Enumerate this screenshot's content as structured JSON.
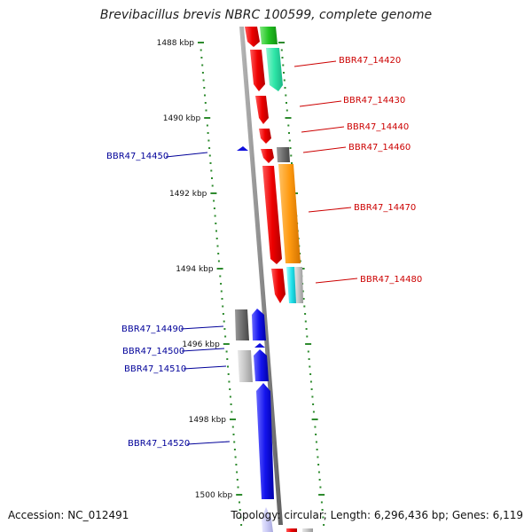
{
  "title": "Brevibacillus brevis NBRC 100599, complete genome",
  "footer": {
    "accession": "Accession: NC_012491",
    "topology": "Topology: circular; Length: 6,296,436 bp; Genes: 6,119"
  },
  "colors": {
    "backbone": "#8c8c8c",
    "tick": "#2e8b2e",
    "label_forward": "#cc0000",
    "label_reverse": "#000099"
  },
  "scale_labels": [
    "1488 kbp",
    "1490 kbp",
    "1492 kbp",
    "1494 kbp",
    "1496 kbp",
    "1498 kbp",
    "1500 kbp"
  ],
  "genes_forward": [
    {
      "label": "BBR47_14420",
      "color": "#cc0000"
    },
    {
      "label": "BBR47_14430",
      "color": "#cc0000"
    },
    {
      "label": "BBR47_14440",
      "color": "#cc0000"
    },
    {
      "label": "BBR47_14460",
      "color": "#cc0000"
    },
    {
      "label": "BBR47_14470",
      "color": "#cc0000"
    },
    {
      "label": "BBR47_14480",
      "color": "#cc0000"
    }
  ],
  "genes_reverse": [
    {
      "label": "BBR47_14450",
      "color": "#000099"
    },
    {
      "label": "BBR47_14490",
      "color": "#000099"
    },
    {
      "label": "BBR47_14500",
      "color": "#000099"
    },
    {
      "label": "BBR47_14510",
      "color": "#000099"
    },
    {
      "label": "BBR47_14520",
      "color": "#000099"
    }
  ]
}
